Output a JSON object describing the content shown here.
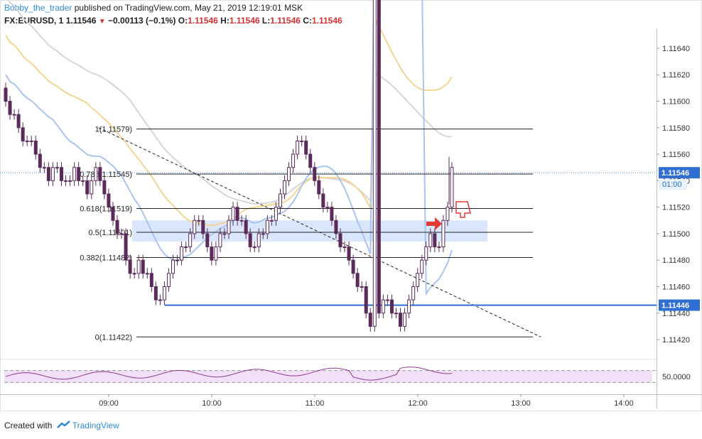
{
  "header": {
    "author": "Bobby_the_trader",
    "published": "published on TradingView.com, May 21, 2019 12:19:01 MSK",
    "symbol_line": {
      "symbol": "FX:EURUSD, 1",
      "last": "1.11546",
      "change": "−0.00113 (−0.1%)",
      "o_label": "O:",
      "o": "1.11546",
      "h_label": "H:",
      "h": "1.11546",
      "l_label": "L:",
      "l": "1.11546",
      "c_label": "C:",
      "c": "1.11546"
    }
  },
  "footer": {
    "created_with": "Created with",
    "brand": "TradingView"
  },
  "colors": {
    "candle": "#5a2a5a",
    "fib_line": "#222222",
    "support_line": "#2e6fd1",
    "zone_fill": "#cfe0fb",
    "ma_fast": "#a9c4ee",
    "ma_mid": "#f3d592",
    "ma_slow": "#d6d6d6",
    "rsi_line": "#8e3a8e",
    "rsi_band": "#f1e0f7",
    "price_label_bg": "#2e6fd1",
    "annotation_red": "#e53935"
  },
  "chart_data": {
    "type": "candlestick",
    "symbol": "FX:EURUSD",
    "timeframe": "1",
    "x_ticks": [
      "09:00",
      "10:00",
      "11:00",
      "12:00",
      "13:00",
      "14:00"
    ],
    "y_ticks": [
      1.1164,
      1.1162,
      1.116,
      1.1158,
      1.1156,
      1.1154,
      1.1152,
      1.115,
      1.1148,
      1.1146,
      1.1144,
      1.1142
    ],
    "y_tick_labels": [
      "1.11640",
      "1.11620",
      "1.11600",
      "1.11580",
      "1.11560",
      "1.11540",
      "1.11520",
      "1.11500",
      "1.11480",
      "1.11460",
      "1.11440",
      "1.11420"
    ],
    "ylim": [
      1.11405,
      1.11655
    ],
    "current_price": {
      "value": 1.11546,
      "label": "1.11546",
      "countdown": "01:00"
    },
    "support": {
      "value": 1.11446,
      "label": "1.11446"
    },
    "fib_levels": [
      {
        "ratio_text": "1(1.11579)",
        "value": 1.11579
      },
      {
        "ratio_text": "0.786(1.11545)",
        "value": 1.11545
      },
      {
        "ratio_text": "0.618(1.11519)",
        "value": 1.11519
      },
      {
        "ratio_text": "0.5(1.11501)",
        "value": 1.11501
      },
      {
        "ratio_text": "0.382(1.11482)",
        "value": 1.11482
      },
      {
        "ratio_text": "0(1.11422)",
        "value": 1.11422
      }
    ],
    "zone": {
      "low": 1.11494,
      "high": 1.1151
    },
    "trendline": {
      "from": [
        "08:50",
        1.1158
      ],
      "to": [
        "13:10",
        1.11422
      ]
    },
    "closes": [
      1.116,
      1.1159,
      1.1159,
      1.1158,
      1.1157,
      1.1157,
      1.1157,
      1.1156,
      1.1155,
      1.1155,
      1.1154,
      1.1155,
      1.1155,
      1.1154,
      1.1154,
      1.1154,
      1.1155,
      1.1154,
      1.1154,
      1.1153,
      1.1154,
      1.1155,
      1.1154,
      1.1153,
      1.1152,
      1.1151,
      1.115,
      1.115,
      1.1148,
      1.1147,
      1.1147,
      1.1148,
      1.1147,
      1.1147,
      1.1146,
      1.1145,
      1.1145,
      1.1146,
      1.1147,
      1.1148,
      1.1148,
      1.1149,
      1.1149,
      1.115,
      1.1151,
      1.1151,
      1.115,
      1.1149,
      1.1148,
      1.1149,
      1.115,
      1.115,
      1.1151,
      1.1152,
      1.1151,
      1.1151,
      1.115,
      1.1149,
      1.1149,
      1.115,
      1.115,
      1.1151,
      1.1151,
      1.1152,
      1.1153,
      1.1154,
      1.1155,
      1.1156,
      1.1157,
      1.1157,
      1.1156,
      1.1155,
      1.1154,
      1.1153,
      1.1152,
      1.1152,
      1.1151,
      1.115,
      1.1149,
      1.1149,
      1.1148,
      1.1147,
      1.1146,
      1.1146,
      1.1144,
      1.1143,
      1.1443,
      1.1144,
      1.1145,
      1.1145,
      1.1144,
      1.1144,
      1.1143,
      1.1144,
      1.1145,
      1.1146,
      1.1147,
      1.1148,
      1.1149,
      1.115,
      1.1149,
      1.1149,
      1.1151,
      1.1152,
      1.1155
    ],
    "rsi": {
      "band": [
        30,
        70
      ],
      "label": "50.0000"
    }
  }
}
